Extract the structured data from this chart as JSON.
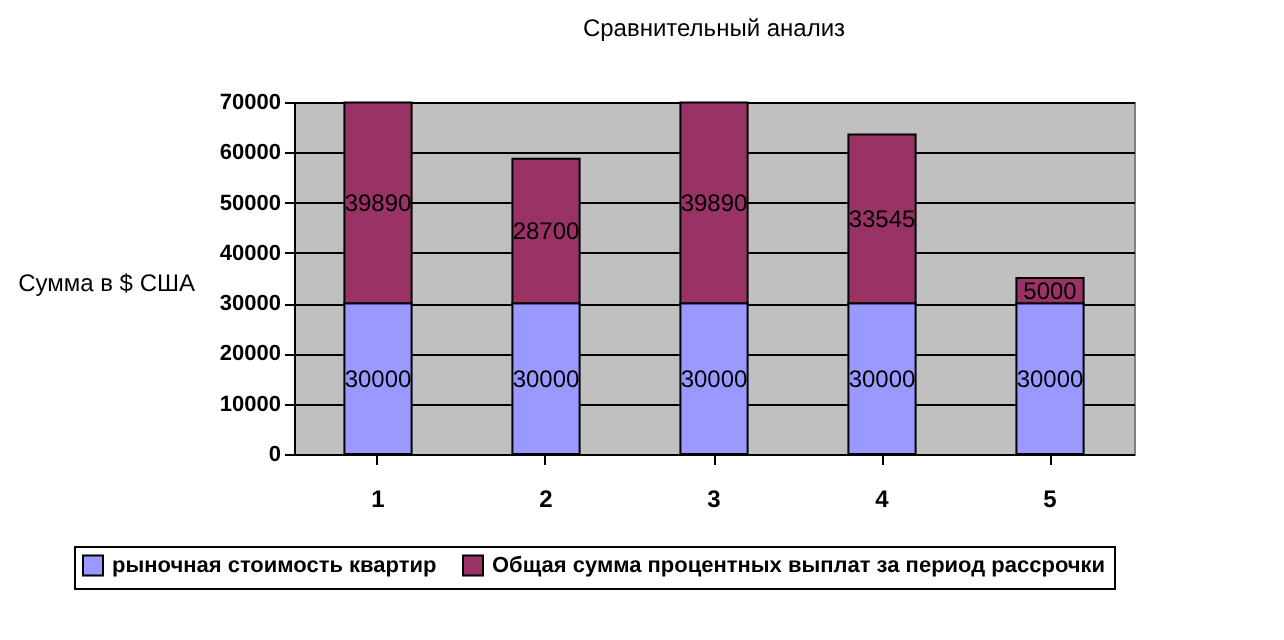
{
  "chart_data": {
    "type": "bar",
    "title": "Сравнительный анализ",
    "ylabel": "Сумма в $ США",
    "categories": [
      "1",
      "2",
      "3",
      "4",
      "5"
    ],
    "stacked": true,
    "series": [
      {
        "name": "рыночная стоимость квартир",
        "color": "#9999ff",
        "values": [
          30000,
          30000,
          30000,
          30000,
          30000
        ]
      },
      {
        "name": "Общая сумма процентных выплат за период рассрочки",
        "color": "#993366",
        "values": [
          39890,
          28700,
          39890,
          33545,
          5000
        ]
      }
    ],
    "ylim": [
      0,
      70000
    ],
    "yticks": [
      0,
      10000,
      20000,
      30000,
      40000,
      50000,
      60000,
      70000
    ],
    "grid": "y",
    "legend": "bottom",
    "data_labels": true
  }
}
